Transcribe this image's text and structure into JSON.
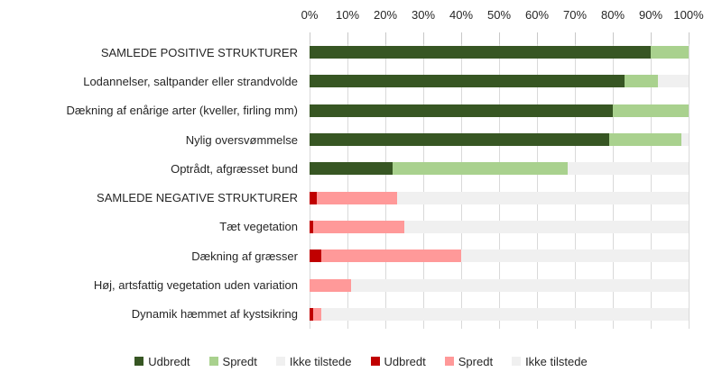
{
  "chart_data": {
    "type": "bar",
    "orientation": "horizontal",
    "stacked": true,
    "title": "",
    "xlabel": "",
    "ylabel": "",
    "xlim": [
      0,
      100
    ],
    "grid": true,
    "axis_position": "top",
    "legend_position": "bottom",
    "x_axis": {
      "ticks": [
        "0%",
        "10%",
        "20%",
        "30%",
        "40%",
        "50%",
        "60%",
        "70%",
        "80%",
        "90%",
        "100%"
      ]
    },
    "categories": [
      "SAMLEDE POSITIVE STRUKTURER",
      "Lodannelser, saltpander eller strandvolde",
      "Dækning af enårige arter (kveller, firling mm)",
      "Nylig oversvømmelse",
      "Optrådt, afgræsset bund",
      "SAMLEDE NEGATIVE STRUKTURER",
      "Tæt vegetation",
      "Dækning af græsser",
      "Høj, artsfattig vegetation uden variation",
      "Dynamik hæmmet af kystsikring"
    ],
    "series": [
      {
        "name": "Udbredt",
        "color": "#375623",
        "values": [
          90,
          83,
          80,
          79,
          22,
          0,
          0,
          0,
          0,
          0
        ]
      },
      {
        "name": "Spredt",
        "color": "#A9D18E",
        "values": [
          10,
          9,
          20,
          19,
          46,
          0,
          0,
          0,
          0,
          0
        ]
      },
      {
        "name": "Ikke tilstede",
        "color": "#F0F0F0",
        "values": [
          0,
          8,
          0,
          2,
          32,
          0,
          0,
          0,
          0,
          0
        ]
      },
      {
        "name": "Udbredt",
        "color": "#C00000",
        "values": [
          0,
          0,
          0,
          0,
          0,
          2,
          1,
          3,
          0,
          1
        ]
      },
      {
        "name": "Spredt",
        "color": "#FF9999",
        "values": [
          0,
          0,
          0,
          0,
          0,
          21,
          24,
          37,
          11,
          2
        ]
      },
      {
        "name": "Ikke tilstede",
        "color": "#F0F0F0",
        "values": [
          0,
          0,
          0,
          0,
          0,
          77,
          75,
          60,
          89,
          97
        ]
      }
    ],
    "legend": [
      {
        "label": "Udbredt",
        "color": "#375623"
      },
      {
        "label": "Spredt",
        "color": "#A9D18E"
      },
      {
        "label": "Ikke tilstede",
        "color": "#F0F0F0"
      },
      {
        "label": "Udbredt",
        "color": "#C00000"
      },
      {
        "label": "Spredt",
        "color": "#FF9999"
      },
      {
        "label": "Ikke tilstede",
        "color": "#F0F0F0"
      }
    ],
    "colors": {
      "gridline": "#d9d9d9",
      "tick": "#c8c8c8",
      "text": "#262626",
      "background": "#ffffff"
    }
  }
}
